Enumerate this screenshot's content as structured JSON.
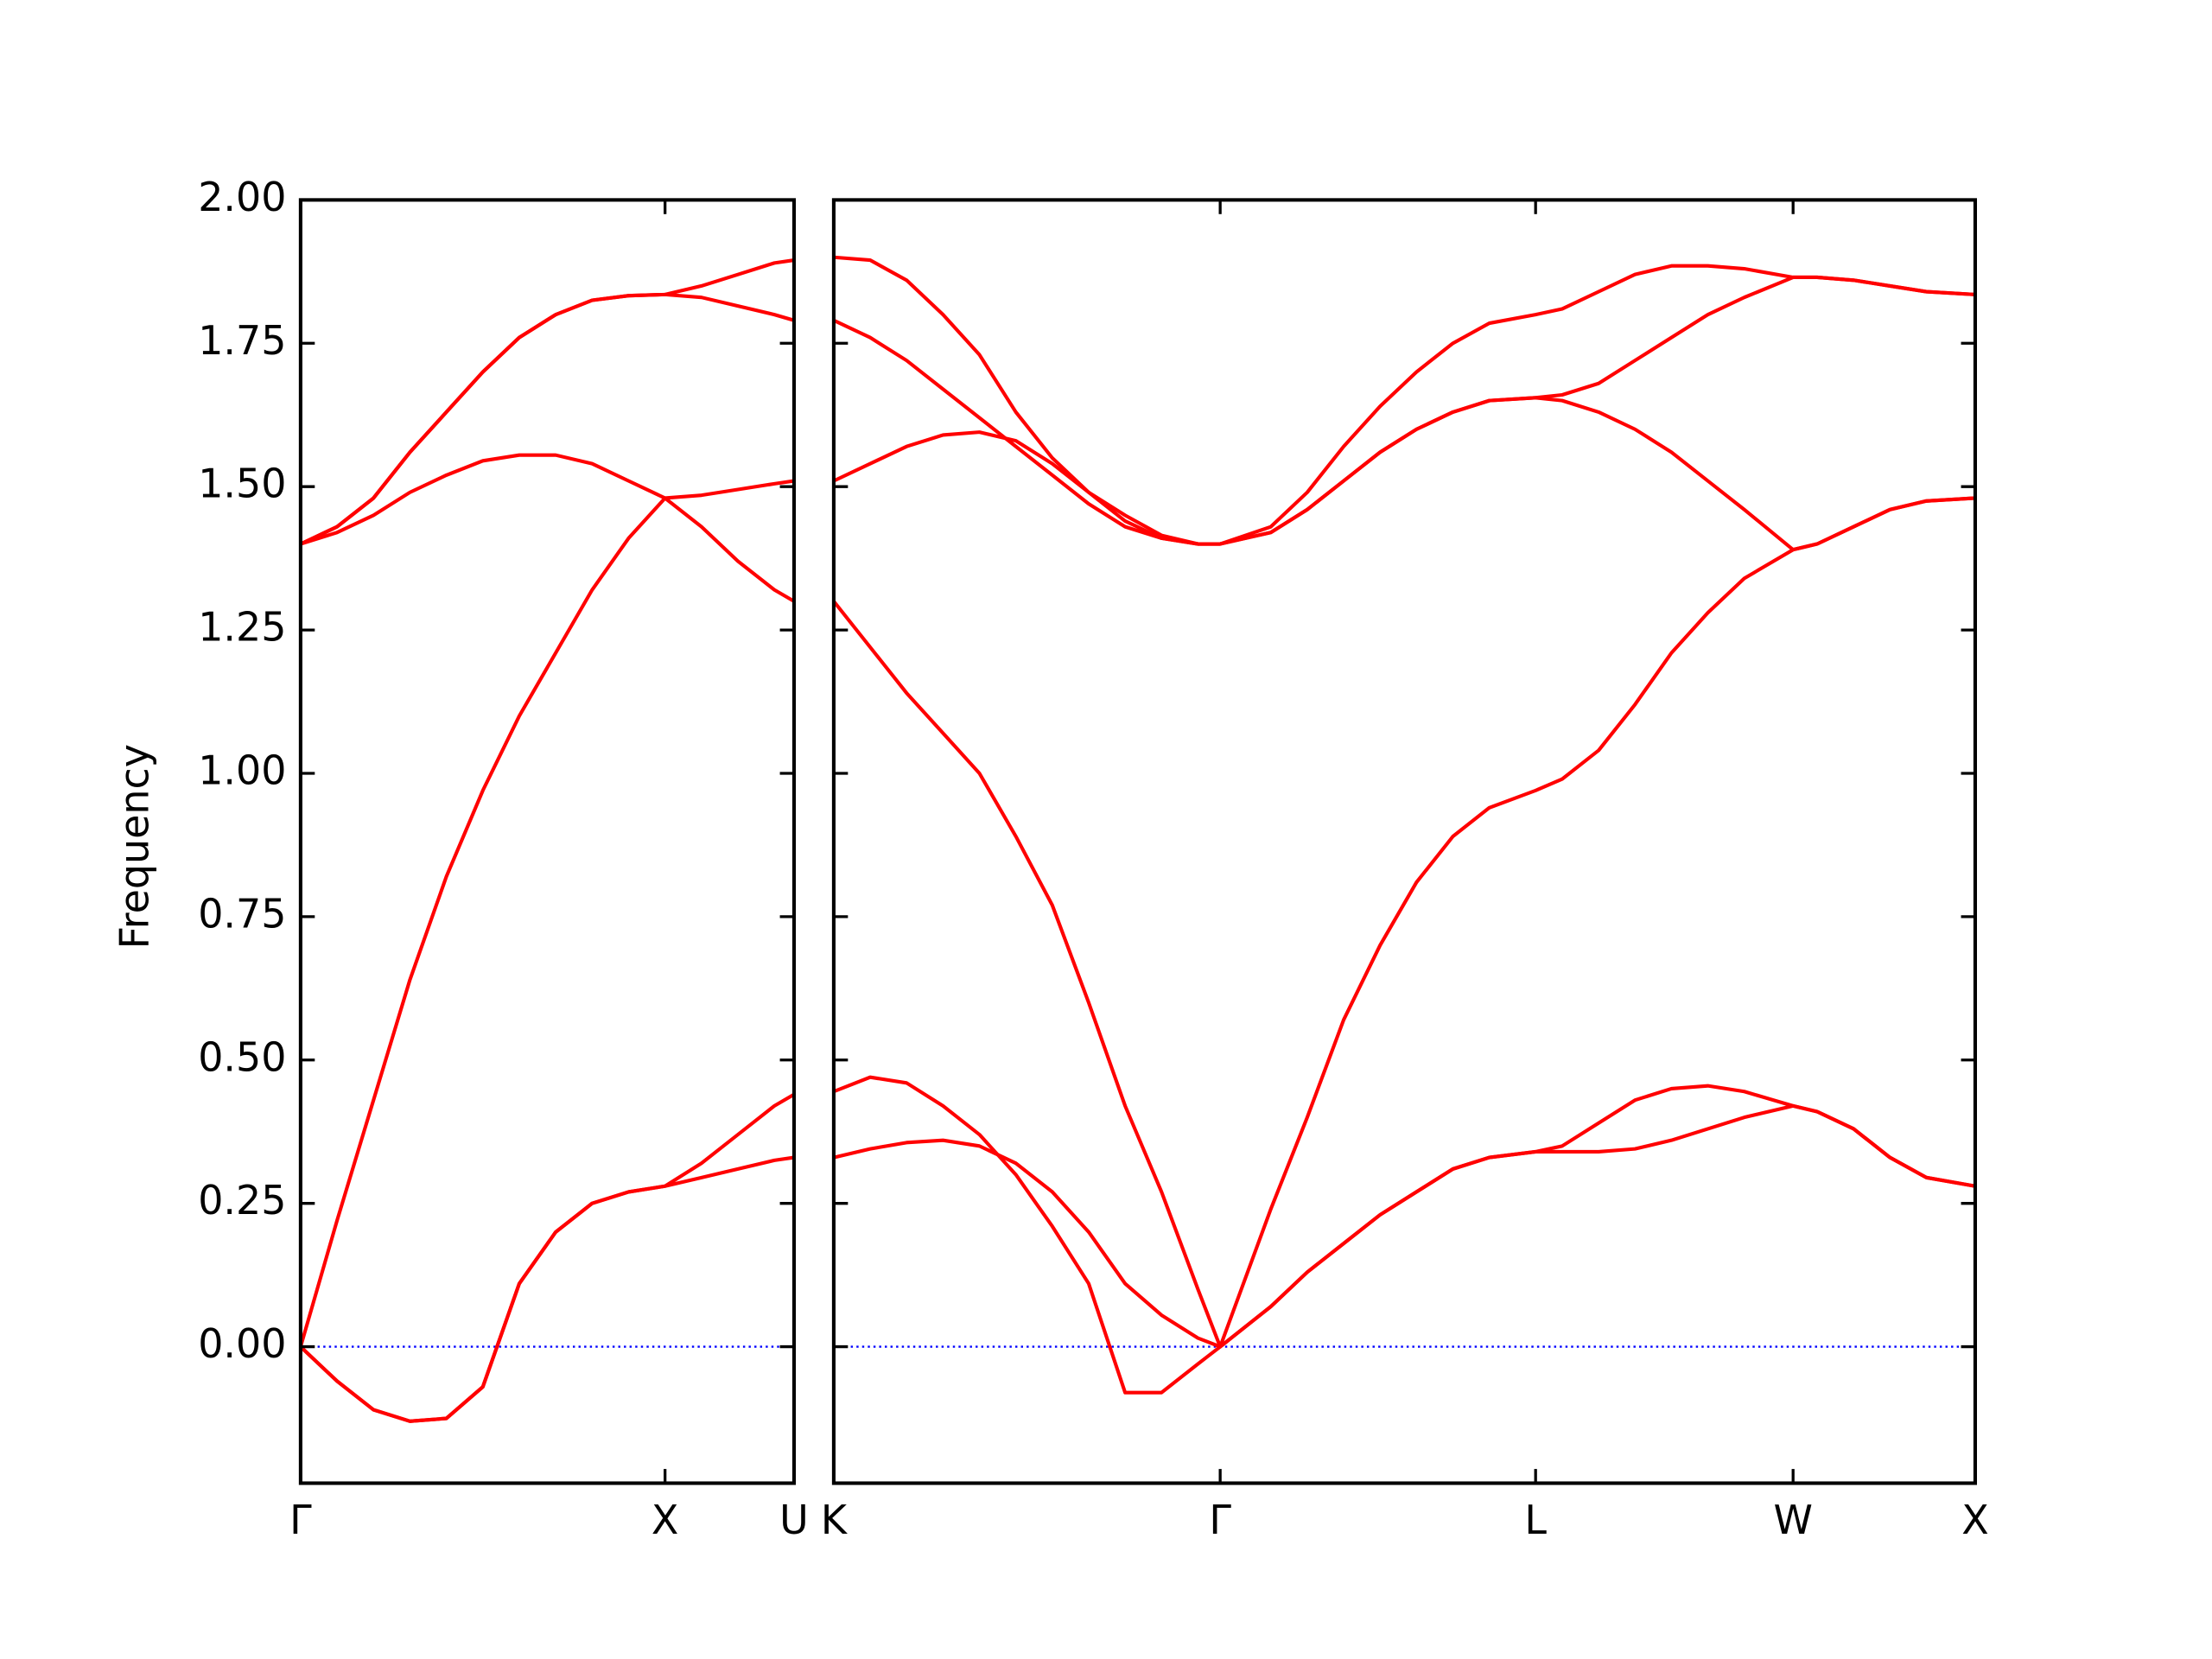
{
  "chart_data": [
    {
      "type": "line",
      "ylabel": "Frequency",
      "xlim": [
        0,
        1.354
      ],
      "xticks": [
        {
          "value": 0,
          "label": "Γ"
        },
        {
          "value": 1,
          "label": "X"
        },
        {
          "value": 1.354,
          "label": "U"
        }
      ],
      "ylim": [
        -0.238,
        2.0
      ],
      "yticks": [
        {
          "value": 0,
          "label": "0.00"
        },
        0.25,
        {
          "value": 0.5,
          "label": "0.50"
        },
        0.75,
        {
          "value": 1,
          "label": "1.00"
        },
        1.25,
        {
          "value": 1.5,
          "label": "1.50"
        },
        1.75,
        {
          "value": 2,
          "label": "2.00"
        }
      ],
      "zero_line": "#0000ff",
      "x": [
        0,
        0.1,
        0.2,
        0.3,
        0.4,
        0.5,
        0.6,
        0.7,
        0.8,
        0.9,
        1.0,
        1.1,
        1.2,
        1.3,
        1.354
      ],
      "series": [
        {
          "color": "#ff0000",
          "values": [
            0,
            -0.06,
            -0.11,
            -0.13,
            -0.125,
            -0.07,
            0.11,
            0.2,
            0.25,
            0.27,
            0.28,
            0.295,
            0.31,
            0.325,
            0.33
          ]
        },
        {
          "color": "#ff0000",
          "values": [
            0,
            -0.06,
            -0.11,
            -0.13,
            -0.125,
            -0.07,
            0.11,
            0.2,
            0.25,
            0.27,
            0.28,
            0.32,
            0.37,
            0.42,
            0.44
          ]
        },
        {
          "color": "#ff0000",
          "values": [
            0,
            0.22,
            0.43,
            0.64,
            0.82,
            0.97,
            1.1,
            1.21,
            1.32,
            1.41,
            1.48,
            1.485,
            1.495,
            1.505,
            1.51
          ]
        },
        {
          "color": "#ff0000",
          "values": [
            1.4,
            1.42,
            1.45,
            1.49,
            1.52,
            1.545,
            1.555,
            1.555,
            1.54,
            1.51,
            1.48,
            1.43,
            1.37,
            1.32,
            1.3
          ]
        },
        {
          "color": "#ff0000",
          "values": [
            1.4,
            1.43,
            1.48,
            1.56,
            1.63,
            1.7,
            1.76,
            1.8,
            1.825,
            1.833,
            1.835,
            1.83,
            1.815,
            1.8,
            1.79
          ]
        },
        {
          "color": "#ff0000",
          "values": [
            1.4,
            1.43,
            1.48,
            1.56,
            1.63,
            1.7,
            1.76,
            1.8,
            1.825,
            1.833,
            1.835,
            1.85,
            1.87,
            1.89,
            1.895
          ]
        }
      ]
    },
    {
      "type": "line",
      "sharey": true,
      "xlim": [
        0,
        3.134
      ],
      "xticks": [
        {
          "value": 0,
          "label": "K"
        },
        {
          "value": 1.061,
          "label": "Γ"
        },
        {
          "value": 1.927,
          "label": "L"
        },
        {
          "value": 2.634,
          "label": "W"
        },
        {
          "value": 3.134,
          "label": "X"
        }
      ],
      "zero_line": "#0000ff",
      "x": [
        0,
        0.1,
        0.2,
        0.3,
        0.4,
        0.5,
        0.6,
        0.7,
        0.8,
        0.9,
        1.0,
        1.061,
        1.2,
        1.3,
        1.4,
        1.5,
        1.6,
        1.7,
        1.8,
        1.927,
        2.0,
        2.1,
        2.2,
        2.3,
        2.4,
        2.5,
        2.634,
        2.7,
        2.8,
        2.9,
        3.0,
        3.134
      ],
      "series": [
        {
          "color": "#ff0000",
          "values": [
            0.33,
            0.345,
            0.356,
            0.36,
            0.35,
            0.32,
            0.27,
            0.2,
            0.11,
            0.055,
            0.015,
            0,
            0.07,
            0.13,
            0.18,
            0.23,
            0.27,
            0.31,
            0.33,
            0.34,
            0.34,
            0.34,
            0.345,
            0.36,
            0.38,
            0.4,
            0.42,
            0.41,
            0.38,
            0.33,
            0.295,
            0.28
          ]
        },
        {
          "color": "#ff0000",
          "values": [
            0.445,
            0.47,
            0.46,
            0.42,
            0.37,
            0.3,
            0.21,
            0.11,
            -0.08,
            -0.08,
            -0.03,
            0,
            0.07,
            0.13,
            0.18,
            0.23,
            0.27,
            0.31,
            0.33,
            0.34,
            0.35,
            0.39,
            0.43,
            0.45,
            0.455,
            0.445,
            0.42,
            0.41,
            0.38,
            0.33,
            0.295,
            0.28
          ]
        },
        {
          "color": "#ff0000",
          "values": [
            1.3,
            1.22,
            1.14,
            1.07,
            1.0,
            0.89,
            0.77,
            0.6,
            0.42,
            0.27,
            0.1,
            0,
            0.24,
            0.4,
            0.57,
            0.7,
            0.81,
            0.89,
            0.94,
            0.97,
            0.99,
            1.04,
            1.12,
            1.21,
            1.28,
            1.34,
            1.39,
            1.4,
            1.43,
            1.46,
            1.475,
            1.48
          ]
        },
        {
          "color": "#ff0000",
          "values": [
            1.51,
            1.54,
            1.57,
            1.59,
            1.595,
            1.58,
            1.54,
            1.49,
            1.44,
            1.41,
            1.4,
            1.4,
            1.42,
            1.46,
            1.51,
            1.56,
            1.6,
            1.63,
            1.65,
            1.655,
            1.65,
            1.63,
            1.6,
            1.56,
            1.51,
            1.46,
            1.39,
            1.4,
            1.43,
            1.46,
            1.475,
            1.48
          ]
        },
        {
          "color": "#ff0000",
          "values": [
            1.79,
            1.76,
            1.72,
            1.67,
            1.62,
            1.57,
            1.52,
            1.47,
            1.43,
            1.41,
            1.4,
            1.4,
            1.42,
            1.46,
            1.51,
            1.56,
            1.6,
            1.63,
            1.65,
            1.655,
            1.66,
            1.68,
            1.72,
            1.76,
            1.8,
            1.83,
            1.865,
            1.865,
            1.86,
            1.85,
            1.84,
            1.835
          ]
        },
        {
          "color": "#ff0000",
          "values": [
            1.9,
            1.895,
            1.86,
            1.8,
            1.73,
            1.63,
            1.55,
            1.49,
            1.45,
            1.415,
            1.4,
            1.4,
            1.43,
            1.49,
            1.57,
            1.64,
            1.7,
            1.75,
            1.785,
            1.8,
            1.81,
            1.84,
            1.87,
            1.885,
            1.885,
            1.88,
            1.865,
            1.865,
            1.86,
            1.85,
            1.84,
            1.835
          ]
        }
      ]
    }
  ]
}
